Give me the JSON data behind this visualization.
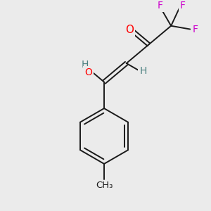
{
  "background_color": "#ebebeb",
  "bond_color": "#1a1a1a",
  "atom_colors": {
    "O": "#ff0000",
    "F": "#cc00cc",
    "H": "#4a8080",
    "C": "#1a1a1a"
  },
  "figsize": [
    3.0,
    3.0
  ],
  "dpi": 100
}
